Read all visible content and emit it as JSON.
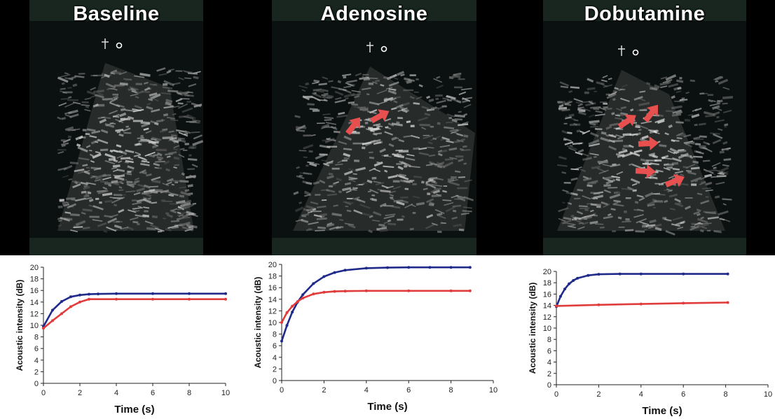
{
  "figure": {
    "panels": [
      {
        "title": "Baseline",
        "arrow_count": 0
      },
      {
        "title": "Adenosine",
        "arrow_count": 2
      },
      {
        "title": "Dobutamine",
        "arrow_count": 5
      }
    ],
    "arrow_color": "#e8504f",
    "icon": "transducer-marker-icon"
  },
  "chart_data": [
    {
      "type": "line",
      "panel": "Baseline",
      "xlabel": "Time (s)",
      "ylabel": "Acoustic intensity (dB)",
      "xlim": [
        0,
        10
      ],
      "ylim": [
        0,
        20
      ],
      "xticks": [
        0,
        2,
        4,
        6,
        8,
        10
      ],
      "yticks": [
        0,
        2,
        4,
        6,
        8,
        10,
        12,
        14,
        16,
        18,
        20
      ],
      "grid": false,
      "series": [
        {
          "color": "#1f2a8a",
          "x": [
            0,
            0.5,
            1,
            1.5,
            2,
            2.5,
            3,
            4,
            6,
            8,
            10
          ],
          "y": [
            9.8,
            12.6,
            14.1,
            14.9,
            15.2,
            15.35,
            15.4,
            15.45,
            15.45,
            15.45,
            15.45
          ]
        },
        {
          "color": "#e23b3b",
          "x": [
            0,
            0.5,
            1,
            1.5,
            2,
            2.5,
            4,
            6,
            8,
            10
          ],
          "y": [
            9.5,
            10.8,
            12.0,
            13.2,
            14.0,
            14.5,
            14.5,
            14.5,
            14.5,
            14.5
          ]
        }
      ]
    },
    {
      "type": "line",
      "panel": "Adenosine",
      "xlabel": "Time (s)",
      "ylabel": "Acoustic intensity (dB)",
      "xlim": [
        0,
        10
      ],
      "ylim": [
        0,
        20
      ],
      "xticks": [
        0,
        2,
        4,
        6,
        8,
        10
      ],
      "yticks": [
        0,
        2,
        4,
        6,
        8,
        10,
        12,
        14,
        16,
        18,
        20
      ],
      "grid": false,
      "series": [
        {
          "color": "#1f2a8a",
          "x": [
            0,
            0.25,
            0.5,
            0.75,
            1,
            1.5,
            2,
            2.5,
            3,
            4,
            5,
            6,
            7,
            8,
            8.9
          ],
          "y": [
            6.8,
            9.5,
            11.8,
            13.5,
            14.8,
            16.7,
            17.9,
            18.6,
            19.0,
            19.35,
            19.45,
            19.5,
            19.5,
            19.5,
            19.5
          ]
        },
        {
          "color": "#e23b3b",
          "x": [
            0,
            0.25,
            0.5,
            0.75,
            1,
            1.5,
            2,
            2.5,
            3,
            4,
            6,
            8,
            8.9
          ],
          "y": [
            10.0,
            11.7,
            12.8,
            13.6,
            14.2,
            14.9,
            15.2,
            15.35,
            15.4,
            15.45,
            15.45,
            15.45,
            15.45
          ]
        }
      ]
    },
    {
      "type": "line",
      "panel": "Dobutamine",
      "xlabel": "Time (s)",
      "ylabel": "Acoustic intensity (dB)",
      "xlim": [
        0,
        10
      ],
      "ylim": [
        0,
        20
      ],
      "xticks": [
        0,
        2,
        4,
        6,
        8,
        10
      ],
      "yticks": [
        0,
        2,
        4,
        6,
        8,
        10,
        12,
        14,
        16,
        18,
        20
      ],
      "grid": false,
      "series": [
        {
          "color": "#1f2a8a",
          "x": [
            0,
            0.2,
            0.4,
            0.6,
            0.8,
            1,
            1.5,
            2,
            3,
            4,
            6,
            8.1
          ],
          "y": [
            13.8,
            15.6,
            16.9,
            17.8,
            18.4,
            18.8,
            19.3,
            19.5,
            19.55,
            19.55,
            19.55,
            19.55
          ]
        },
        {
          "color": "#e23b3b",
          "x": [
            0,
            2,
            4,
            6,
            8.1
          ],
          "y": [
            13.9,
            14.1,
            14.25,
            14.4,
            14.5
          ]
        }
      ]
    }
  ]
}
